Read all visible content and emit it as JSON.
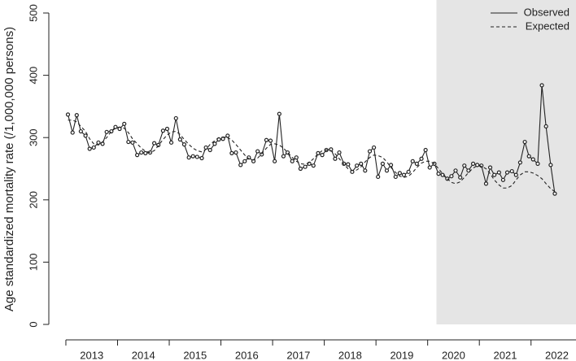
{
  "chart_data": {
    "type": "line",
    "ylabel": "Age standardized mortality rate (/1,000,000 persons)",
    "x": [
      2013.04,
      2013.13,
      2013.21,
      2013.29,
      2013.38,
      2013.46,
      2013.54,
      2013.63,
      2013.71,
      2013.79,
      2013.88,
      2013.96,
      2014.04,
      2014.13,
      2014.21,
      2014.29,
      2014.38,
      2014.46,
      2014.54,
      2014.63,
      2014.71,
      2014.79,
      2014.88,
      2014.96,
      2015.04,
      2015.13,
      2015.21,
      2015.29,
      2015.38,
      2015.46,
      2015.54,
      2015.63,
      2015.71,
      2015.79,
      2015.88,
      2015.96,
      2016.04,
      2016.13,
      2016.21,
      2016.29,
      2016.38,
      2016.46,
      2016.54,
      2016.63,
      2016.71,
      2016.79,
      2016.88,
      2016.96,
      2017.04,
      2017.13,
      2017.21,
      2017.29,
      2017.38,
      2017.46,
      2017.54,
      2017.63,
      2017.71,
      2017.79,
      2017.88,
      2017.96,
      2018.04,
      2018.13,
      2018.21,
      2018.29,
      2018.38,
      2018.46,
      2018.54,
      2018.63,
      2018.71,
      2018.79,
      2018.88,
      2018.96,
      2019.04,
      2019.13,
      2019.21,
      2019.29,
      2019.38,
      2019.46,
      2019.54,
      2019.63,
      2019.71,
      2019.79,
      2019.88,
      2019.96,
      2020.04,
      2020.13,
      2020.21,
      2020.29,
      2020.38,
      2020.46,
      2020.54,
      2020.63,
      2020.71,
      2020.79,
      2020.88,
      2020.96,
      2021.04,
      2021.13,
      2021.21,
      2021.29,
      2021.38,
      2021.46,
      2021.54,
      2021.63,
      2021.71,
      2021.79,
      2021.88,
      2021.96,
      2022.04,
      2022.13,
      2022.21,
      2022.29,
      2022.38,
      2022.46
    ],
    "series": [
      {
        "name": "Observed",
        "color": "#222222",
        "line_style": "solid",
        "markers": true,
        "values": [
          337,
          308,
          336,
          310,
          303,
          282,
          284,
          292,
          290,
          309,
          310,
          317,
          314,
          322,
          293,
          292,
          272,
          276,
          275,
          276,
          291,
          288,
          311,
          314,
          292,
          331,
          297,
          289,
          268,
          270,
          269,
          267,
          284,
          280,
          290,
          297,
          298,
          303,
          275,
          276,
          256,
          262,
          268,
          262,
          278,
          273,
          296,
          295,
          262,
          338,
          270,
          276,
          262,
          268,
          250,
          253,
          258,
          255,
          275,
          272,
          280,
          281,
          266,
          276,
          258,
          257,
          245,
          255,
          258,
          247,
          278,
          284,
          237,
          258,
          247,
          256,
          237,
          243,
          240,
          245,
          262,
          258,
          266,
          280,
          252,
          258,
          242,
          240,
          234,
          238,
          247,
          236,
          255,
          247,
          258,
          256,
          255,
          226,
          252,
          240,
          244,
          232,
          244,
          246,
          240,
          260,
          293,
          270,
          265,
          258,
          384,
          318,
          256,
          210
        ]
      },
      {
        "name": "Expected",
        "color": "#222222",
        "line_style": "dashed",
        "markers": false,
        "values": [
          328,
          328,
          325,
          318,
          310,
          298,
          290,
          288,
          293,
          300,
          310,
          315,
          317,
          315,
          308,
          298,
          290,
          283,
          278,
          276,
          279,
          287,
          297,
          304,
          309,
          310,
          305,
          297,
          289,
          283,
          279,
          277,
          281,
          289,
          295,
          300,
          301,
          300,
          296,
          289,
          280,
          272,
          266,
          264,
          267,
          274,
          283,
          289,
          290,
          288,
          283,
          276,
          268,
          262,
          258,
          257,
          260,
          266,
          274,
          279,
          280,
          279,
          274,
          266,
          257,
          250,
          247,
          248,
          253,
          261,
          268,
          272,
          271,
          268,
          261,
          252,
          244,
          238,
          236,
          238,
          244,
          252,
          259,
          262,
          262,
          258,
          250,
          242,
          234,
          228,
          226,
          229,
          236,
          244,
          251,
          255,
          254,
          250,
          242,
          232,
          224,
          219,
          219,
          223,
          232,
          240,
          245,
          245,
          243,
          239,
          234,
          226,
          218,
          213
        ]
      }
    ],
    "xlim": [
      2012.67,
      2022.87
    ],
    "ylim": [
      0,
      500
    ],
    "yticks": [
      0,
      100,
      200,
      300,
      400,
      500
    ],
    "xticks": [
      {
        "value": 2013.5,
        "label": "2013"
      },
      {
        "value": 2014.5,
        "label": "2014"
      },
      {
        "value": 2015.5,
        "label": "2015"
      },
      {
        "value": 2016.5,
        "label": "2016"
      },
      {
        "value": 2017.5,
        "label": "2017"
      },
      {
        "value": 2018.5,
        "label": "2018"
      },
      {
        "value": 2019.5,
        "label": "2019"
      },
      {
        "value": 2020.5,
        "label": "2020"
      },
      {
        "value": 2021.5,
        "label": "2021"
      },
      {
        "value": 2022.5,
        "label": "2022"
      }
    ],
    "x_tick_marks": [
      2013,
      2014,
      2015,
      2016,
      2017,
      2018,
      2019,
      2020,
      2021,
      2022
    ],
    "shade_from": 2020.17,
    "shade_color": "#e5e5e5",
    "legend": "top-right"
  }
}
